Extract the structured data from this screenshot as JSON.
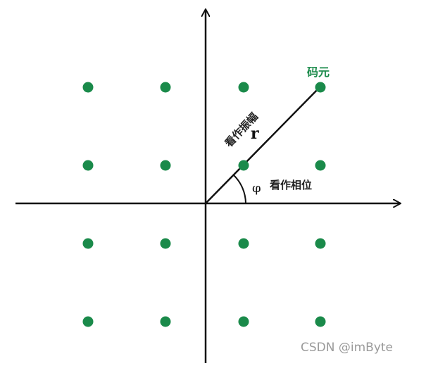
{
  "diagram": {
    "symbol_label": "码元",
    "radius_label": "r",
    "phase_symbol": "φ",
    "phase_label": "看作相位",
    "amplitude_label": "看作振幅"
  },
  "watermark": "CSDN @imByte",
  "colors": {
    "point": "#1a8a4a",
    "symbol_label": "#1a8a4a",
    "axis": "#111111",
    "text": "#222222",
    "watermark": "#9a9a9a"
  },
  "constellation": {
    "grid_values": [
      -3,
      -1,
      1,
      3
    ],
    "highlight_point": [
      3,
      3
    ]
  }
}
